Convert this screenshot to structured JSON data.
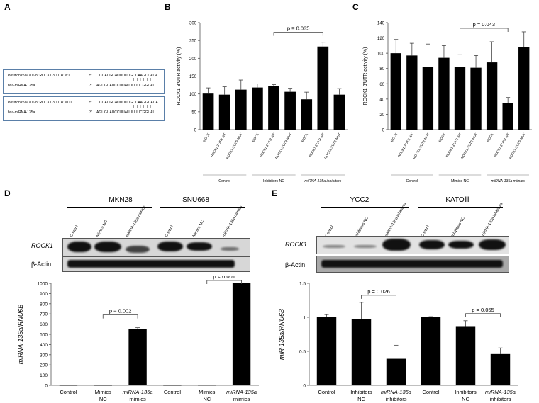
{
  "panels": {
    "A": "A",
    "B": "B",
    "C": "C",
    "D": "D",
    "E": "E"
  },
  "panelA": {
    "wt": {
      "label": "Position 699-706 of ROCK1 3' UTR WT",
      "target_prime": "5'",
      "target_seq": "...CUAUGCAUUUUUGCCAAGCCAUA...",
      "mir_label": "hsa-miRNA-135a",
      "mir_prime": "3'",
      "mir_seq": "AGUGUAUCCUUAUUUUUCGGUAU"
    },
    "mut": {
      "label": "Position 699-706 of ROCK1 3' UTR MUT",
      "target_prime": "5'",
      "target_seq": "...CUAUGCAUUUUUGCCAAGGCAUA...",
      "mir_label": "hsa-miRNA-135a",
      "mir_prime": "3'",
      "mir_seq": "AGUGUAUCCUUAUUUUUCGGUAU"
    }
  },
  "panelD_blot": {
    "groups": [
      "MKN28",
      "SNU668"
    ],
    "lanes": [
      "Control",
      "Mimics NC",
      "miRNA-135a mimics",
      "Control",
      "Mimics NC",
      "miRNA-135a mimics"
    ],
    "rows": [
      "ROCK1",
      "β-Actin"
    ]
  },
  "panelE_blot": {
    "groups": [
      "YCC2",
      "KATOⅢ"
    ],
    "lanes": [
      "Control",
      "Inhibitors NC",
      "miRNA-135a inhibitors",
      "Control",
      "Inhibitors NC",
      "miRNA-135a inhibitors"
    ],
    "rows": [
      "ROCK1",
      "β-Actin"
    ]
  },
  "chart_data": [
    {
      "panel": "B",
      "type": "bar",
      "ylabel": "ROCK1 3'UTR activity (%)",
      "ylim": [
        0,
        300
      ],
      "yticks": [
        0,
        50,
        100,
        150,
        200,
        250,
        300
      ],
      "categories": [
        "MOCK",
        "ROCK1 3'UTR WT",
        "ROCK1 3'UTR MUT",
        "MOCK",
        "ROCK1 3'UTR WT",
        "ROCK1 3'UTR MUT",
        "MOCK",
        "ROCK1 3'UTR WT",
        "ROCK1 3'UTR MUT"
      ],
      "values": [
        101,
        98,
        112,
        118,
        122,
        106,
        85,
        233,
        98
      ],
      "errors": [
        16,
        22,
        27,
        10,
        4,
        10,
        20,
        12,
        17
      ],
      "groups": [
        "Control",
        "Inhibitors NC",
        "miRNA-135a inhibitors"
      ],
      "annotation": {
        "text": "p = 0.035",
        "from": 4,
        "to": 7
      }
    },
    {
      "panel": "C",
      "type": "bar",
      "ylabel": "ROCK1 3'UTR activity (%)",
      "ylim": [
        0,
        140
      ],
      "yticks": [
        0,
        20,
        40,
        60,
        80,
        100,
        120,
        140
      ],
      "categories": [
        "MOCK",
        "ROCK1 3'UTR WT",
        "ROCK1 3'UTR MUT",
        "MOCK",
        "ROCK1 3'UTR WT",
        "ROCK1 3'UTR MUT",
        "MOCK",
        "ROCK1 3'UTR WT",
        "ROCK1 3'UTR MUT"
      ],
      "values": [
        100,
        97,
        82,
        94,
        82,
        81,
        88,
        35,
        108
      ],
      "errors": [
        18,
        16,
        30,
        16,
        16,
        16,
        27,
        7,
        20
      ],
      "groups": [
        "Control",
        "Mimics NC",
        "miRNA-135a mimics"
      ],
      "annotation": {
        "text": "p = 0.043",
        "from": 4,
        "to": 7
      }
    },
    {
      "panel": "D",
      "type": "bar",
      "ylabel": "miRNA-135a/RNU6B",
      "ylim": [
        0,
        1000
      ],
      "yticks": [
        0,
        100,
        200,
        300,
        400,
        500,
        600,
        700,
        800,
        900,
        1000
      ],
      "categories": [
        "Control",
        "Mimics NC",
        "miRNA-135a mimics",
        "Control",
        "Mimics NC",
        "miRNA-135a mimics"
      ],
      "values": [
        1,
        1,
        550,
        1,
        2,
        1000
      ],
      "errors": [
        0,
        0,
        15,
        0,
        0,
        0
      ],
      "annotations": [
        {
          "text": "p = 0.002",
          "from": 1,
          "to": 2
        },
        {
          "text": "p < 0.001",
          "from": 4,
          "to": 5
        }
      ]
    },
    {
      "panel": "E",
      "type": "bar",
      "ylabel": "miR-135a/RNU6B",
      "ylim": [
        0,
        1.5
      ],
      "yticks": [
        0,
        0.5,
        1,
        1.5
      ],
      "categories": [
        "Control",
        "Inhibitors NC",
        "miRNA-135a inhibitors",
        "Control",
        "Inhibitors NC",
        "miRNA-135a inhibitors"
      ],
      "values": [
        1.0,
        0.97,
        0.39,
        1.0,
        0.87,
        0.46
      ],
      "errors": [
        0.04,
        0.25,
        0.2,
        0.01,
        0.08,
        0.09
      ],
      "annotations": [
        {
          "text": "p = 0.026",
          "from": 1,
          "to": 2
        },
        {
          "text": "p = 0.055",
          "from": 4,
          "to": 5
        }
      ]
    }
  ]
}
